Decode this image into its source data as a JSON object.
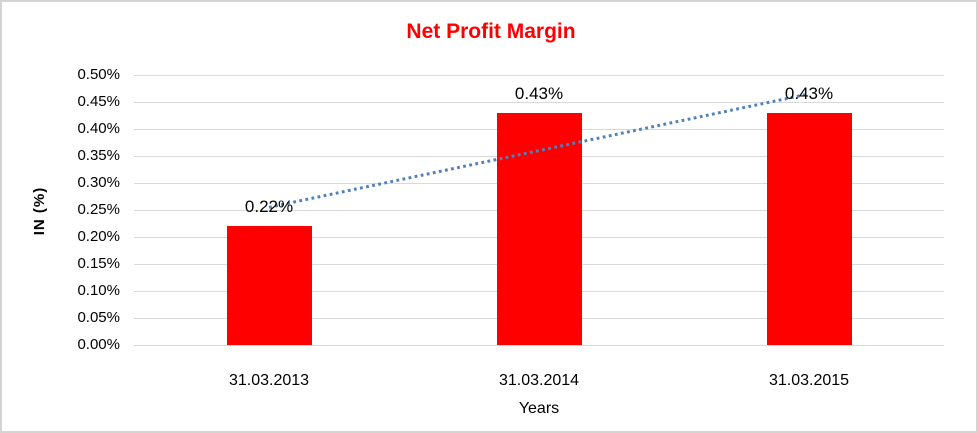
{
  "chart_data": {
    "type": "bar",
    "title": "Net Profit Margin",
    "xlabel": "Years",
    "ylabel": "IN (%)",
    "categories": [
      "31.03.2013",
      "31.03.2014",
      "31.03.2015"
    ],
    "values": [
      0.22,
      0.43,
      0.43
    ],
    "data_labels": [
      "0.22%",
      "0.43%",
      "0.43%"
    ],
    "y_tick_labels": [
      "0.50%",
      "0.45%",
      "0.40%",
      "0.35%",
      "0.30%",
      "0.25%",
      "0.20%",
      "0.15%",
      "0.10%",
      "0.05%",
      "0.00%"
    ],
    "ylim": [
      0,
      0.5
    ],
    "grid": true,
    "legend": "none",
    "trendline": {
      "type": "linear",
      "style": "dotted",
      "fitted_values": [
        0.255,
        0.36,
        0.465
      ]
    },
    "colors": {
      "bar": "#ff0000",
      "title": "#ff0000",
      "gridline": "#d9d9d9",
      "trendline": "#4f81bd",
      "text": "#000000",
      "border": "#d4d4d4"
    }
  }
}
